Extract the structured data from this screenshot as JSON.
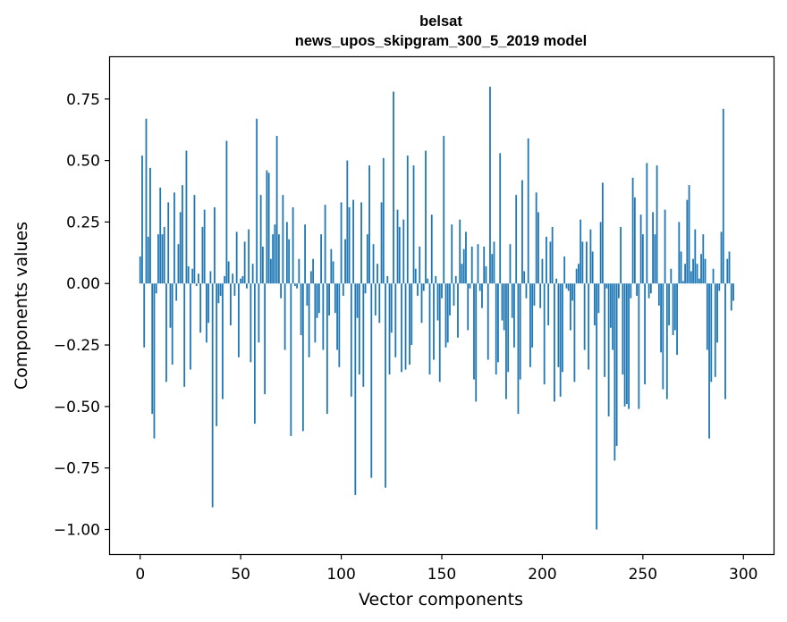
{
  "chart_data": {
    "type": "bar",
    "title_lines": [
      "belsat",
      "news_upos_skipgram_300_5_2019 model"
    ],
    "xlabel": "Vector components",
    "ylabel": "Components values",
    "xlim": [
      -15,
      315
    ],
    "ylim": [
      -1.1,
      0.92
    ],
    "xticks": [
      0,
      50,
      100,
      150,
      200,
      250,
      300
    ],
    "xtick_labels": [
      "0",
      "50",
      "100",
      "150",
      "200",
      "250",
      "300"
    ],
    "yticks": [
      -1.0,
      -0.75,
      -0.5,
      -0.25,
      0.0,
      0.25,
      0.5,
      0.75
    ],
    "ytick_labels": [
      "−1.00",
      "−0.75",
      "−0.50",
      "−0.25",
      "0.00",
      "0.25",
      "0.50",
      "0.75"
    ],
    "bar_color": "#1f77b4",
    "grid": false,
    "legend": "none",
    "series": [
      {
        "name": "belsat",
        "x_start": 0,
        "values": [
          0.11,
          0.52,
          -0.26,
          0.67,
          0.19,
          0.47,
          -0.53,
          -0.63,
          -0.04,
          0.2,
          0.39,
          0.2,
          0.23,
          -0.4,
          0.33,
          -0.18,
          -0.33,
          0.37,
          -0.07,
          0.16,
          0.29,
          0.4,
          -0.42,
          0.54,
          0.07,
          -0.35,
          0.06,
          0.36,
          -0.01,
          0.04,
          -0.2,
          0.23,
          0.3,
          -0.24,
          -0.16,
          0.05,
          -0.91,
          0.31,
          -0.58,
          -0.08,
          -0.05,
          -0.47,
          0.03,
          0.58,
          0.09,
          -0.17,
          0.04,
          -0.05,
          0.21,
          -0.3,
          0.02,
          0.03,
          0.17,
          -0.02,
          0.22,
          -0.32,
          0.08,
          -0.57,
          0.67,
          -0.24,
          0.36,
          0.15,
          -0.45,
          0.46,
          0.45,
          0.1,
          0.2,
          0.24,
          0.6,
          0.2,
          -0.06,
          0.36,
          -0.27,
          0.25,
          0.18,
          -0.62,
          0.31,
          -0.01,
          -0.02,
          0.1,
          -0.21,
          -0.6,
          0.24,
          -0.09,
          -0.3,
          0.05,
          0.1,
          -0.24,
          -0.14,
          -0.12,
          0.2,
          -0.27,
          0.32,
          -0.53,
          -0.13,
          0.14,
          0.09,
          -0.12,
          -0.27,
          -0.34,
          0.33,
          -0.05,
          0.18,
          0.5,
          0.31,
          -0.46,
          0.34,
          -0.86,
          -0.14,
          -0.37,
          0.33,
          -0.42,
          -0.04,
          0.2,
          0.48,
          -0.79,
          0.16,
          -0.13,
          0.08,
          -0.16,
          0.33,
          0.51,
          -0.83,
          0.03,
          -0.37,
          -0.2,
          0.78,
          -0.3,
          0.3,
          0.23,
          -0.36,
          0.26,
          -0.35,
          0.52,
          -0.33,
          -0.25,
          0.48,
          0.06,
          -0.05,
          0.15,
          -0.16,
          -0.03,
          0.54,
          0.02,
          -0.37,
          0.28,
          -0.31,
          0.03,
          -0.15,
          -0.4,
          -0.06,
          0.6,
          -0.26,
          -0.24,
          -0.13,
          0.24,
          -0.09,
          0.03,
          -0.22,
          0.26,
          0.08,
          0.14,
          0.21,
          -0.19,
          -0.02,
          0.15,
          -0.39,
          -0.48,
          0.16,
          -0.03,
          -0.1,
          0.15,
          0.07,
          -0.31,
          0.8,
          0.12,
          0.17,
          -0.37,
          -0.32,
          0.53,
          -0.15,
          -0.19,
          -0.47,
          -0.36,
          0.16,
          -0.14,
          -0.26,
          0.36,
          -0.53,
          -0.39,
          0.42,
          0.05,
          -0.06,
          0.59,
          -0.34,
          -0.26,
          -0.09,
          0.37,
          0.29,
          -0.1,
          0.1,
          -0.41,
          0.19,
          -0.17,
          0.17,
          0.23,
          -0.48,
          0.02,
          -0.34,
          -0.46,
          -0.36,
          0.11,
          -0.02,
          -0.03,
          -0.19,
          -0.07,
          -0.4,
          0.06,
          0.08,
          0.26,
          0.17,
          -0.27,
          0.17,
          -0.35,
          0.22,
          0.13,
          -0.17,
          -1.0,
          -0.12,
          0.25,
          0.41,
          -0.38,
          -0.02,
          -0.54,
          -0.18,
          -0.27,
          -0.72,
          -0.66,
          -0.06,
          0.23,
          -0.37,
          -0.5,
          -0.49,
          -0.51,
          -0.06,
          0.43,
          0.35,
          -0.05,
          -0.51,
          0.28,
          0.2,
          -0.41,
          0.49,
          -0.06,
          -0.04,
          0.29,
          0.2,
          0.48,
          -0.09,
          -0.28,
          -0.43,
          0.3,
          -0.47,
          -0.17,
          0.06,
          -0.21,
          -0.19,
          -0.29,
          0.25,
          0.13,
          0.01,
          0.08,
          0.34,
          0.4,
          0.05,
          0.1,
          0.22,
          0.08,
          0.02,
          0.12,
          0.2,
          0.1,
          -0.27,
          -0.63,
          -0.4,
          0.06,
          -0.38,
          -0.24,
          -0.03,
          0.21,
          0.71,
          -0.47,
          0.1,
          0.13,
          -0.11,
          -0.07
        ]
      }
    ]
  }
}
